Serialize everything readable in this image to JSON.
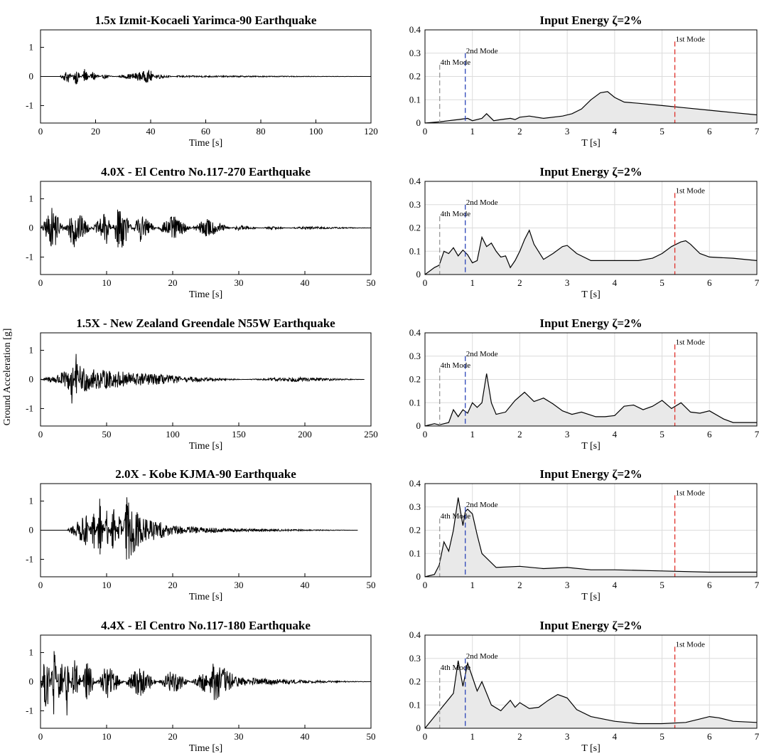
{
  "figure": {
    "ylabel": "Ground Acceleration [g]"
  },
  "records": [
    {
      "title": "1.5x Izmit-Kocaeli Yarimca-90 Earthquake",
      "xmax": 120,
      "xticks": [
        0,
        20,
        40,
        60,
        80,
        100,
        120
      ],
      "duration": 120
    },
    {
      "title": "4.0X - El Centro No.117-270 Earthquake",
      "xmax": 50,
      "xticks": [
        0,
        10,
        20,
        30,
        40,
        50
      ],
      "duration": 50
    },
    {
      "title": "1.5X - New Zealand Greendale N55W Earthquake",
      "xmax": 250,
      "xticks": [
        0,
        50,
        100,
        150,
        200,
        250
      ],
      "duration": 245
    },
    {
      "title": "2.0X - Kobe KJMA-90 Earthquake",
      "xmax": 50,
      "xticks": [
        0,
        10,
        20,
        30,
        40,
        50
      ],
      "duration": 48
    },
    {
      "title": "4.4X - El Centro No.117-180 Earthquake",
      "xmax": 50,
      "xticks": [
        0,
        10,
        20,
        30,
        40,
        50
      ],
      "duration": 50
    }
  ],
  "record_axes": {
    "xlabel": "Time [s]",
    "ylim": [
      -1.6,
      1.6
    ],
    "yticks": [
      1,
      0,
      -1
    ],
    "ytick_labels": [
      "1",
      "0",
      "-1"
    ]
  },
  "spectra_axes": {
    "title": "Input Energy ζ=2%",
    "xlabel": "T [s]",
    "xlim": [
      0,
      7
    ],
    "ylim": [
      0,
      0.4
    ],
    "xticks": [
      0,
      1,
      2,
      3,
      4,
      5,
      6,
      7
    ],
    "yticks": [
      0,
      0.1,
      0.2,
      0.3,
      0.4
    ],
    "mode_labels": [
      "1st Mode",
      "2nd Mode",
      "4th Mode"
    ],
    "mode_periods": [
      5.27,
      0.85,
      0.31
    ],
    "mode_colors": [
      "#e0302a",
      "#2b45b8",
      "#999999"
    ]
  },
  "chart_data": [
    {
      "type": "line",
      "title": "1.5x Izmit-Kocaeli Yarimca-90 Earthquake",
      "xlabel": "Time [s]",
      "ylabel": "Ground Acceleration [g]",
      "xlim": [
        0,
        120
      ],
      "ylim": [
        -1.6,
        1.6
      ],
      "series": [
        {
          "x": [
            0,
            7,
            10,
            13,
            16,
            19,
            23,
            27,
            40,
            42,
            50,
            120
          ],
          "y": [
            0,
            0,
            0.25,
            -0.3,
            0.28,
            -0.2,
            0.08,
            0,
            0.22,
            -0.1,
            0.03,
            0
          ]
        }
      ]
    },
    {
      "type": "line",
      "title": "4.0X - El Centro No.117-270 Earthquake",
      "xlabel": "Time [s]",
      "ylabel": "Ground Acceleration [g]",
      "xlim": [
        0,
        50
      ],
      "ylim": [
        -1.6,
        1.6
      ],
      "series": [
        {
          "x": [
            0,
            2,
            5,
            10,
            12,
            15,
            20,
            25,
            30,
            35,
            40,
            50
          ],
          "y": [
            0,
            0.8,
            -0.75,
            0.6,
            -0.9,
            0.5,
            -0.45,
            0.35,
            -0.1,
            0.05,
            -0.05,
            0
          ]
        }
      ]
    },
    {
      "type": "line",
      "title": "1.5X - New Zealand Greendale N55W Earthquake",
      "xlabel": "Time [s]",
      "ylabel": "Ground Acceleration [g]",
      "xlim": [
        0,
        250
      ],
      "ylim": [
        -1.6,
        1.6
      ],
      "series": [
        {
          "x": [
            0,
            20,
            24,
            27,
            30,
            40,
            105,
            110,
            190,
            245
          ],
          "y": [
            0,
            0.3,
            1.1,
            -0.95,
            0.5,
            0.35,
            0.12,
            -0.1,
            0.08,
            0
          ]
        }
      ]
    },
    {
      "type": "line",
      "title": "2.0X - Kobe KJMA-90 Earthquake",
      "xlabel": "Time [s]",
      "ylabel": "Ground Acceleration [g]",
      "xlim": [
        0,
        50
      ],
      "ylim": [
        -1.6,
        1.6
      ],
      "series": [
        {
          "x": [
            0,
            4,
            7,
            8,
            9,
            10,
            11,
            12,
            13,
            15,
            20,
            30,
            48
          ],
          "y": [
            0,
            0,
            0.55,
            -0.85,
            1.2,
            -0.8,
            0.9,
            -0.8,
            1.15,
            0.5,
            0.15,
            0.05,
            0
          ]
        }
      ]
    },
    {
      "type": "line",
      "title": "4.4X - El Centro No.117-180 Earthquake",
      "xlabel": "Time [s]",
      "ylabel": "Ground Acceleration [g]",
      "xlim": [
        0,
        50
      ],
      "ylim": [
        -1.6,
        1.6
      ],
      "series": [
        {
          "x": [
            0,
            1,
            2,
            3,
            4,
            5,
            7,
            10,
            15,
            20,
            25,
            26,
            30,
            40,
            50
          ],
          "y": [
            0,
            1.25,
            -1.45,
            1.2,
            -1.2,
            1.1,
            -0.7,
            0.6,
            -0.55,
            0.45,
            -0.4,
            0.75,
            0.15,
            0.05,
            0
          ]
        }
      ]
    },
    {
      "type": "area",
      "title": "Input Energy ζ=2%",
      "xlabel": "T [s]",
      "xlim": [
        0,
        7
      ],
      "ylim": [
        0,
        0.4
      ],
      "series": [
        {
          "x": [
            0,
            0.3,
            0.5,
            0.7,
            0.9,
            1.0,
            1.2,
            1.3,
            1.45,
            1.6,
            1.8,
            1.9,
            2.0,
            2.2,
            2.5,
            2.9,
            3.1,
            3.3,
            3.5,
            3.7,
            3.85,
            4.0,
            4.2,
            4.5,
            5.0,
            5.5,
            6.0,
            6.5,
            7.0
          ],
          "y": [
            0,
            0.005,
            0.01,
            0.015,
            0.02,
            0.01,
            0.02,
            0.04,
            0.01,
            0.015,
            0.02,
            0.015,
            0.025,
            0.03,
            0.02,
            0.03,
            0.04,
            0.06,
            0.1,
            0.13,
            0.135,
            0.11,
            0.09,
            0.085,
            0.075,
            0.065,
            0.055,
            0.045,
            0.035
          ]
        }
      ]
    },
    {
      "type": "area",
      "title": "Input Energy ζ=2%",
      "xlabel": "T [s]",
      "xlim": [
        0,
        7
      ],
      "ylim": [
        0,
        0.4
      ],
      "series": [
        {
          "x": [
            0,
            0.2,
            0.3,
            0.4,
            0.5,
            0.6,
            0.7,
            0.8,
            0.9,
            1.0,
            1.1,
            1.2,
            1.3,
            1.4,
            1.5,
            1.6,
            1.7,
            1.8,
            1.9,
            2.0,
            2.1,
            2.2,
            2.3,
            2.5,
            2.7,
            2.9,
            3.0,
            3.2,
            3.5,
            4.0,
            4.5,
            4.8,
            5.0,
            5.2,
            5.4,
            5.5,
            5.6,
            5.8,
            6.0,
            6.5,
            7.0
          ],
          "y": [
            0,
            0.03,
            0.04,
            0.1,
            0.09,
            0.115,
            0.08,
            0.105,
            0.085,
            0.05,
            0.06,
            0.16,
            0.12,
            0.135,
            0.1,
            0.075,
            0.08,
            0.03,
            0.06,
            0.1,
            0.15,
            0.19,
            0.13,
            0.065,
            0.09,
            0.12,
            0.125,
            0.09,
            0.06,
            0.06,
            0.06,
            0.07,
            0.09,
            0.12,
            0.14,
            0.145,
            0.13,
            0.09,
            0.075,
            0.07,
            0.06
          ]
        }
      ]
    },
    {
      "type": "area",
      "title": "Input Energy ζ=2%",
      "xlabel": "T [s]",
      "xlim": [
        0,
        7
      ],
      "ylim": [
        0,
        0.4
      ],
      "series": [
        {
          "x": [
            0,
            0.2,
            0.3,
            0.5,
            0.6,
            0.7,
            0.8,
            0.9,
            1.0,
            1.1,
            1.2,
            1.3,
            1.4,
            1.5,
            1.7,
            1.9,
            2.1,
            2.3,
            2.5,
            2.7,
            2.9,
            3.1,
            3.3,
            3.6,
            3.8,
            4.0,
            4.2,
            4.4,
            4.6,
            4.8,
            5.0,
            5.2,
            5.4,
            5.6,
            5.8,
            6.0,
            6.3,
            6.5,
            7.0
          ],
          "y": [
            0,
            0.01,
            0.005,
            0.015,
            0.07,
            0.04,
            0.07,
            0.055,
            0.1,
            0.08,
            0.1,
            0.225,
            0.1,
            0.05,
            0.06,
            0.11,
            0.145,
            0.105,
            0.12,
            0.095,
            0.065,
            0.05,
            0.06,
            0.04,
            0.04,
            0.045,
            0.085,
            0.09,
            0.07,
            0.085,
            0.11,
            0.075,
            0.1,
            0.06,
            0.055,
            0.065,
            0.03,
            0.015,
            0.015
          ]
        }
      ]
    },
    {
      "type": "area",
      "title": "Input Energy ζ=2%",
      "xlabel": "T [s]",
      "xlim": [
        0,
        7
      ],
      "ylim": [
        0,
        0.4
      ],
      "series": [
        {
          "x": [
            0,
            0.2,
            0.3,
            0.4,
            0.5,
            0.6,
            0.7,
            0.8,
            0.85,
            0.9,
            1.0,
            1.1,
            1.2,
            1.5,
            2.0,
            2.5,
            3.0,
            3.5,
            4.0,
            5.0,
            6.0,
            7.0
          ],
          "y": [
            0,
            0.01,
            0.05,
            0.15,
            0.11,
            0.2,
            0.34,
            0.22,
            0.28,
            0.29,
            0.27,
            0.18,
            0.1,
            0.04,
            0.045,
            0.035,
            0.04,
            0.03,
            0.03,
            0.025,
            0.02,
            0.02
          ]
        }
      ]
    },
    {
      "type": "area",
      "title": "Input Energy ζ=2%",
      "xlabel": "T [s]",
      "xlim": [
        0,
        7
      ],
      "ylim": [
        0,
        0.4
      ],
      "series": [
        {
          "x": [
            0,
            0.2,
            0.4,
            0.6,
            0.7,
            0.8,
            0.9,
            1.0,
            1.1,
            1.2,
            1.4,
            1.6,
            1.8,
            1.9,
            2.0,
            2.2,
            2.4,
            2.6,
            2.8,
            3.0,
            3.2,
            3.5,
            4.0,
            4.5,
            5.0,
            5.5,
            5.8,
            6.0,
            6.2,
            6.5,
            7.0
          ],
          "y": [
            0,
            0.05,
            0.1,
            0.15,
            0.29,
            0.18,
            0.28,
            0.22,
            0.16,
            0.2,
            0.1,
            0.075,
            0.12,
            0.09,
            0.11,
            0.085,
            0.09,
            0.12,
            0.145,
            0.13,
            0.08,
            0.05,
            0.03,
            0.02,
            0.02,
            0.025,
            0.04,
            0.05,
            0.045,
            0.03,
            0.025
          ]
        }
      ]
    }
  ]
}
